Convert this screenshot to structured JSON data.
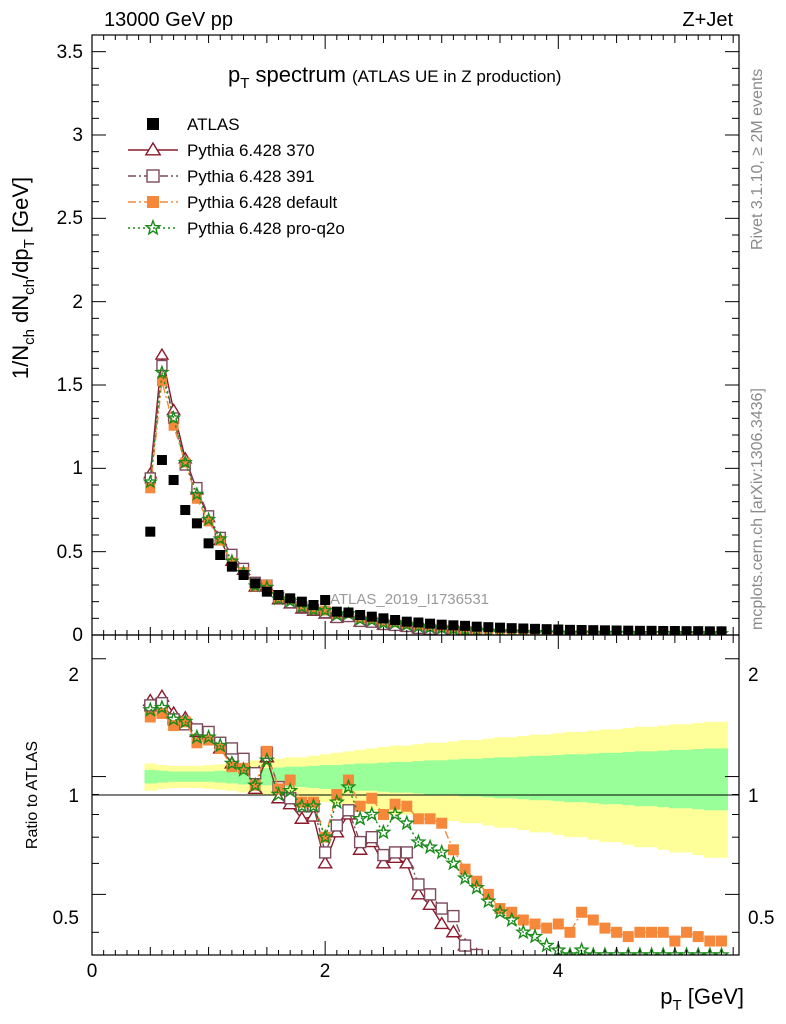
{
  "header": {
    "left": "13000 GeV pp",
    "right": "Z+Jet"
  },
  "title": {
    "main_p": "p",
    "main_sub": "T",
    "main_rest": " spectrum",
    "small": "(ATLAS UE in Z production)"
  },
  "side_labels": {
    "rivet": "Rivet 3.1.10, ≥ 2M events",
    "mcplots": "mcplots.cern.ch [arXiv:1306.3436]"
  },
  "watermark": "ATLAS_2019_I1736531",
  "axes": {
    "ylabel_top": "1/N_ch dN_ch/dp_T [GeV]",
    "ylabel_ratio": "Ratio to ATLAS",
    "xlabel_p": "p",
    "xlabel_sub": "T",
    "xlabel_rest": " [GeV]",
    "top_yticks": [
      "0",
      "0.5",
      "1",
      "1.5",
      "2",
      "2.5",
      "3",
      "3.5"
    ],
    "ratio_yticks": [
      "0.5",
      "1",
      "2"
    ],
    "xticks": [
      "0",
      "2",
      "4"
    ]
  },
  "legend": [
    {
      "label": "ATLAS",
      "color": "#000000",
      "marker": "square-filled",
      "line": "none"
    },
    {
      "label": "Pythia 6.428 370",
      "color": "#8b1a2b",
      "marker": "triangle-open",
      "line": "solid"
    },
    {
      "label": "Pythia 6.428 391",
      "color": "#7d4a5e",
      "marker": "square-open",
      "line": "dashdot"
    },
    {
      "label": "Pythia 6.428 default",
      "color": "#f5883a",
      "marker": "square-filled",
      "line": "dashdot"
    },
    {
      "label": "Pythia 6.428 pro-q2o",
      "color": "#1a8a1a",
      "marker": "star",
      "line": "dotted"
    }
  ],
  "chart_data": {
    "type": "line",
    "title": "p_T spectrum (ATLAS UE in Z production)",
    "xlabel": "p_T [GeV]",
    "ylabel": "1/N_ch dN_ch/dp_T [GeV]",
    "ratio_ylabel": "Ratio to ATLAS",
    "xlim": [
      0,
      5.55
    ],
    "ylim": [
      0,
      3.6
    ],
    "ratio_ylim": [
      0.35,
      2.3
    ],
    "ratio_scale": "log",
    "legend_position": "top-left",
    "x": [
      0.5,
      0.6,
      0.7,
      0.8,
      0.9,
      1.0,
      1.1,
      1.2,
      1.3,
      1.4,
      1.5,
      1.6,
      1.7,
      1.8,
      1.9,
      2.0,
      2.1,
      2.2,
      2.3,
      2.4,
      2.5,
      2.6,
      2.7,
      2.8,
      2.9,
      3.0,
      3.1,
      3.2,
      3.3,
      3.4,
      3.5,
      3.6,
      3.7,
      3.8,
      3.9,
      4.0,
      4.1,
      4.2,
      4.3,
      4.4,
      4.5,
      4.6,
      4.7,
      4.8,
      4.9,
      5.0,
      5.1,
      5.2,
      5.3,
      5.4
    ],
    "atlas": [
      0.62,
      1.05,
      0.93,
      0.75,
      0.67,
      0.55,
      0.48,
      0.41,
      0.36,
      0.31,
      0.26,
      0.24,
      0.22,
      0.2,
      0.18,
      0.21,
      0.14,
      0.135,
      0.12,
      0.11,
      0.1,
      0.09,
      0.08,
      0.075,
      0.068,
      0.062,
      0.058,
      0.055,
      0.05,
      0.047,
      0.044,
      0.041,
      0.039,
      0.037,
      0.035,
      0.033,
      0.031,
      0.03,
      0.029,
      0.028,
      0.027,
      0.026,
      0.025,
      0.025,
      0.024,
      0.024,
      0.023,
      0.023,
      0.022,
      0.022
    ],
    "series": [
      {
        "name": "Pythia 6.428 370",
        "ratio": [
          1.56,
          1.6,
          1.45,
          1.41,
          1.3,
          1.28,
          1.18,
          1.08,
          1.08,
          0.93,
          1.12,
          0.88,
          0.85,
          0.78,
          0.79,
          0.6,
          0.72,
          0.8,
          0.65,
          0.68,
          0.6,
          0.62,
          0.6,
          0.5,
          0.47,
          0.42,
          0.4,
          0.37,
          0.35
        ]
      },
      {
        "name": "Pythia 6.428 391",
        "ratio": [
          1.52,
          1.54,
          1.4,
          1.36,
          1.32,
          1.3,
          1.22,
          1.18,
          1.11,
          1.02,
          1.15,
          0.94,
          0.88,
          0.84,
          0.84,
          0.64,
          0.75,
          0.82,
          0.68,
          0.7,
          0.63,
          0.64,
          0.64,
          0.53,
          0.5,
          0.46,
          0.44,
          0.37,
          0.35
        ]
      },
      {
        "name": "Pythia 6.428 default",
        "ratio": [
          1.42,
          1.45,
          1.35,
          1.38,
          1.22,
          1.24,
          1.18,
          1.06,
          1.05,
          0.95,
          1.16,
          0.93,
          0.98,
          0.86,
          0.86,
          0.7,
          0.9,
          0.98,
          0.84,
          0.88,
          0.8,
          0.85,
          0.84,
          0.78,
          0.78,
          0.76,
          0.65,
          0.58,
          0.54,
          0.5,
          0.46,
          0.45,
          0.43,
          0.42,
          0.41,
          0.42,
          0.4,
          0.45,
          0.43,
          0.41,
          0.4,
          0.39,
          0.4,
          0.4,
          0.4,
          0.38,
          0.4,
          0.39,
          0.38,
          0.38
        ]
      },
      {
        "name": "Pythia 6.428 pro-q2o",
        "ratio": [
          1.48,
          1.5,
          1.4,
          1.38,
          1.26,
          1.26,
          1.2,
          1.08,
          1.04,
          0.95,
          1.1,
          0.9,
          0.92,
          0.84,
          0.84,
          0.7,
          0.86,
          0.94,
          0.78,
          0.8,
          0.72,
          0.8,
          0.76,
          0.68,
          0.66,
          0.64,
          0.6,
          0.55,
          0.52,
          0.48,
          0.45,
          0.43,
          0.4,
          0.39,
          0.37,
          0.36,
          0.35,
          0.36,
          0.35,
          0.35,
          0.35,
          0.35,
          0.35,
          0.35,
          0.35,
          0.35,
          0.35,
          0.35,
          0.35,
          0.35
        ]
      }
    ],
    "band_inner": [
      0.04,
      0.035,
      0.03,
      0.03,
      0.03,
      0.03,
      0.035,
      0.04,
      0.045,
      0.05,
      0.05,
      0.055,
      0.06,
      0.06,
      0.065,
      0.07,
      0.07,
      0.075,
      0.08,
      0.08,
      0.085,
      0.09,
      0.09,
      0.095,
      0.1,
      0.1,
      0.105,
      0.11,
      0.11,
      0.115,
      0.12,
      0.12,
      0.125,
      0.13,
      0.13,
      0.135,
      0.14,
      0.14,
      0.145,
      0.15,
      0.15,
      0.155,
      0.16,
      0.16,
      0.165,
      0.17,
      0.17,
      0.175,
      0.18,
      0.18
    ],
    "band_outer": [
      0.08,
      0.07,
      0.065,
      0.065,
      0.065,
      0.07,
      0.075,
      0.08,
      0.09,
      0.1,
      0.1,
      0.11,
      0.12,
      0.12,
      0.13,
      0.14,
      0.15,
      0.16,
      0.17,
      0.18,
      0.19,
      0.2,
      0.2,
      0.21,
      0.22,
      0.22,
      0.23,
      0.24,
      0.24,
      0.25,
      0.26,
      0.26,
      0.27,
      0.28,
      0.28,
      0.29,
      0.3,
      0.3,
      0.31,
      0.32,
      0.32,
      0.33,
      0.34,
      0.34,
      0.35,
      0.36,
      0.36,
      0.37,
      0.38,
      0.38
    ]
  }
}
